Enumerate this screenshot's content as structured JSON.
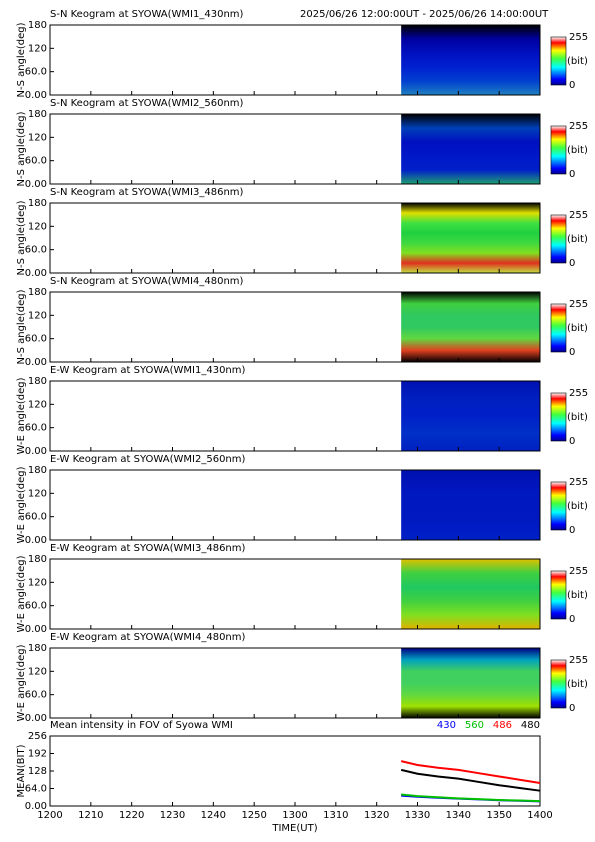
{
  "period": "2025/06/26 12:00:00UT - 2025/06/26 14:00:00UT",
  "chart_data": [
    {
      "type": "heatmap",
      "title": "S-N Keogram at SYOWA(WMI1_430nm)",
      "ylabel": "N-S angle(deg)",
      "xlim": [
        0,
        120
      ],
      "xticks": [
        0,
        10,
        20,
        30,
        40,
        50,
        60,
        70,
        80,
        90,
        100,
        110,
        120
      ],
      "ylim": [
        0,
        180
      ],
      "yticks": [
        {
          "value": 0,
          "label": "0.00"
        },
        {
          "value": 60,
          "label": "60.0"
        },
        120,
        180
      ],
      "data_start": 86,
      "colors": [
        "#000000",
        "#0000a0",
        "#0010c0",
        "#0020d0",
        "#0040d0",
        "#2080c0"
      ],
      "colorbar": {
        "ticks": [
          0,
          255
        ],
        "label": "(bit)"
      }
    },
    {
      "type": "heatmap",
      "title": "S-N Keogram at SYOWA(WMI2_560nm)",
      "ylabel": "N-S angle(deg)",
      "xlim": [
        0,
        120
      ],
      "xticks": [
        0,
        10,
        20,
        30,
        40,
        50,
        60,
        70,
        80,
        90,
        100,
        110,
        120
      ],
      "ylim": [
        0,
        180
      ],
      "yticks": [
        {
          "value": 0,
          "label": "0.00"
        },
        {
          "value": 60,
          "label": "60.0"
        },
        120,
        180
      ],
      "data_start": 86,
      "colors": [
        "#000000",
        "#0040b8",
        "#0010c0",
        "#0018c8",
        "#0020c8",
        "#20a070"
      ],
      "colorbar": {
        "ticks": [
          0,
          255
        ],
        "label": "(bit)"
      }
    },
    {
      "type": "heatmap",
      "title": "S-N Keogram at SYOWA(WMI3_486nm)",
      "ylabel": "N-S angle(deg)",
      "xlim": [
        0,
        120
      ],
      "xticks": [
        0,
        10,
        20,
        30,
        40,
        50,
        60,
        70,
        80,
        90,
        100,
        110,
        120
      ],
      "ylim": [
        0,
        180
      ],
      "yticks": [
        {
          "value": 0,
          "label": "0.00"
        },
        {
          "value": 60,
          "label": "60.0"
        },
        120,
        180
      ],
      "data_start": 86,
      "colors": [
        "#000000",
        "#e0e000",
        "#40e040",
        "#20d040",
        "#40d840",
        "#80e020",
        "#e03020",
        "#c0e040"
      ],
      "colorbar": {
        "ticks": [
          0,
          255
        ],
        "label": "(bit)"
      }
    },
    {
      "type": "heatmap",
      "title": "S-N Keogram at SYOWA(WMI4_480nm)",
      "ylabel": "N-S angle(deg)",
      "xlim": [
        0,
        120
      ],
      "xticks": [
        0,
        10,
        20,
        30,
        40,
        50,
        60,
        70,
        80,
        90,
        100,
        110,
        120
      ],
      "ylim": [
        0,
        180
      ],
      "yticks": [
        {
          "value": 0,
          "label": "0.00"
        },
        {
          "value": 60,
          "label": "60.0"
        },
        120,
        180
      ],
      "data_start": 86,
      "colors": [
        "#000000",
        "#40d040",
        "#30c860",
        "#30c860",
        "#60d840",
        "#e04020",
        "#000000"
      ],
      "colorbar": {
        "ticks": [
          0,
          255
        ],
        "label": "(bit)"
      }
    },
    {
      "type": "heatmap",
      "title": "E-W Keogram at SYOWA(WMI1_430nm)",
      "ylabel": "W-E angle(deg)",
      "xlim": [
        0,
        120
      ],
      "xticks": [
        0,
        10,
        20,
        30,
        40,
        50,
        60,
        70,
        80,
        90,
        100,
        110,
        120
      ],
      "ylim": [
        0,
        180
      ],
      "yticks": [
        {
          "value": 0,
          "label": "0.00"
        },
        {
          "value": 60,
          "label": "60.0"
        },
        120,
        180
      ],
      "data_start": 86,
      "colors": [
        "#0010b0",
        "#0020c0",
        "#0020c8",
        "#0030c8",
        "#0020c0"
      ],
      "colorbar": {
        "ticks": [
          0,
          255
        ],
        "label": "(bit)"
      }
    },
    {
      "type": "heatmap",
      "title": "E-W Keogram at SYOWA(WMI2_560nm)",
      "ylabel": "W-E angle(deg)",
      "xlim": [
        0,
        120
      ],
      "xticks": [
        0,
        10,
        20,
        30,
        40,
        50,
        60,
        70,
        80,
        90,
        100,
        110,
        120
      ],
      "ylim": [
        0,
        180
      ],
      "yticks": [
        {
          "value": 0,
          "label": "0.00"
        },
        {
          "value": 60,
          "label": "60.0"
        },
        120,
        180
      ],
      "data_start": 86,
      "colors": [
        "#0010b0",
        "#0018c0",
        "#0018c0",
        "#0020c8"
      ],
      "colorbar": {
        "ticks": [
          0,
          255
        ],
        "label": "(bit)"
      }
    },
    {
      "type": "heatmap",
      "title": "E-W Keogram at SYOWA(WMI3_486nm)",
      "ylabel": "W-E angle(deg)",
      "xlim": [
        0,
        120
      ],
      "xticks": [
        0,
        10,
        20,
        30,
        40,
        50,
        60,
        70,
        80,
        90,
        100,
        110,
        120
      ],
      "ylim": [
        0,
        180
      ],
      "yticks": [
        {
          "value": 0,
          "label": "0.00"
        },
        {
          "value": 60,
          "label": "60.0"
        },
        120,
        180
      ],
      "data_start": 86,
      "colors": [
        "#e0c000",
        "#40d040",
        "#20c860",
        "#40d040",
        "#80e020",
        "#e0b000"
      ],
      "colorbar": {
        "ticks": [
          0,
          255
        ],
        "label": "(bit)"
      }
    },
    {
      "type": "heatmap",
      "title": "E-W Keogram at SYOWA(WMI4_480nm)",
      "ylabel": "W-E angle(deg)",
      "xlim": [
        0,
        120
      ],
      "xticks": [
        0,
        10,
        20,
        30,
        40,
        50,
        60,
        70,
        80,
        90,
        100,
        110,
        120
      ],
      "ylim": [
        0,
        180
      ],
      "yticks": [
        {
          "value": 0,
          "label": "0.00"
        },
        {
          "value": 60,
          "label": "60.0"
        },
        120,
        180
      ],
      "data_start": 86,
      "colors": [
        "#000080",
        "#00a0c0",
        "#40d060",
        "#40d060",
        "#60d840",
        "#a0e000",
        "#000000"
      ],
      "colorbar": {
        "ticks": [
          0,
          255
        ],
        "label": "(bit)"
      }
    },
    {
      "type": "line",
      "title": "Mean intensity in FOV of Syowa WMI",
      "ylabel": "MEAN(BIT)",
      "xlabel": "TIME(UT)",
      "xlim": [
        0,
        120
      ],
      "xticks": [
        {
          "value": 0,
          "label": "1200"
        },
        {
          "value": 10,
          "label": "1210"
        },
        {
          "value": 20,
          "label": "1220"
        },
        {
          "value": 30,
          "label": "1230"
        },
        {
          "value": 40,
          "label": "1240"
        },
        {
          "value": 50,
          "label": "1250"
        },
        {
          "value": 60,
          "label": "1300"
        },
        {
          "value": 70,
          "label": "1310"
        },
        {
          "value": 80,
          "label": "1320"
        },
        {
          "value": 90,
          "label": "1330"
        },
        {
          "value": 100,
          "label": "1340"
        },
        {
          "value": 110,
          "label": "1350"
        },
        {
          "value": 120,
          "label": "1400"
        }
      ],
      "ylim": [
        0,
        256
      ],
      "yticks": [
        {
          "value": 0,
          "label": "0.00"
        },
        {
          "value": 64,
          "label": "64.0"
        },
        128,
        192,
        256
      ],
      "x": [
        86,
        90,
        95,
        100,
        105,
        110,
        115,
        120
      ],
      "series": [
        {
          "name": "430",
          "color": "#0000ff",
          "values": [
            38,
            34,
            30,
            27,
            24,
            21,
            19,
            17
          ]
        },
        {
          "name": "560",
          "color": "#00c000",
          "values": [
            42,
            36,
            32,
            28,
            25,
            22,
            20,
            18
          ]
        },
        {
          "name": "486",
          "color": "#ff0000",
          "values": [
            164,
            150,
            140,
            132,
            120,
            108,
            96,
            84
          ]
        },
        {
          "name": "480",
          "color": "#000000",
          "values": [
            132,
            118,
            108,
            100,
            88,
            76,
            66,
            56
          ]
        }
      ]
    }
  ]
}
